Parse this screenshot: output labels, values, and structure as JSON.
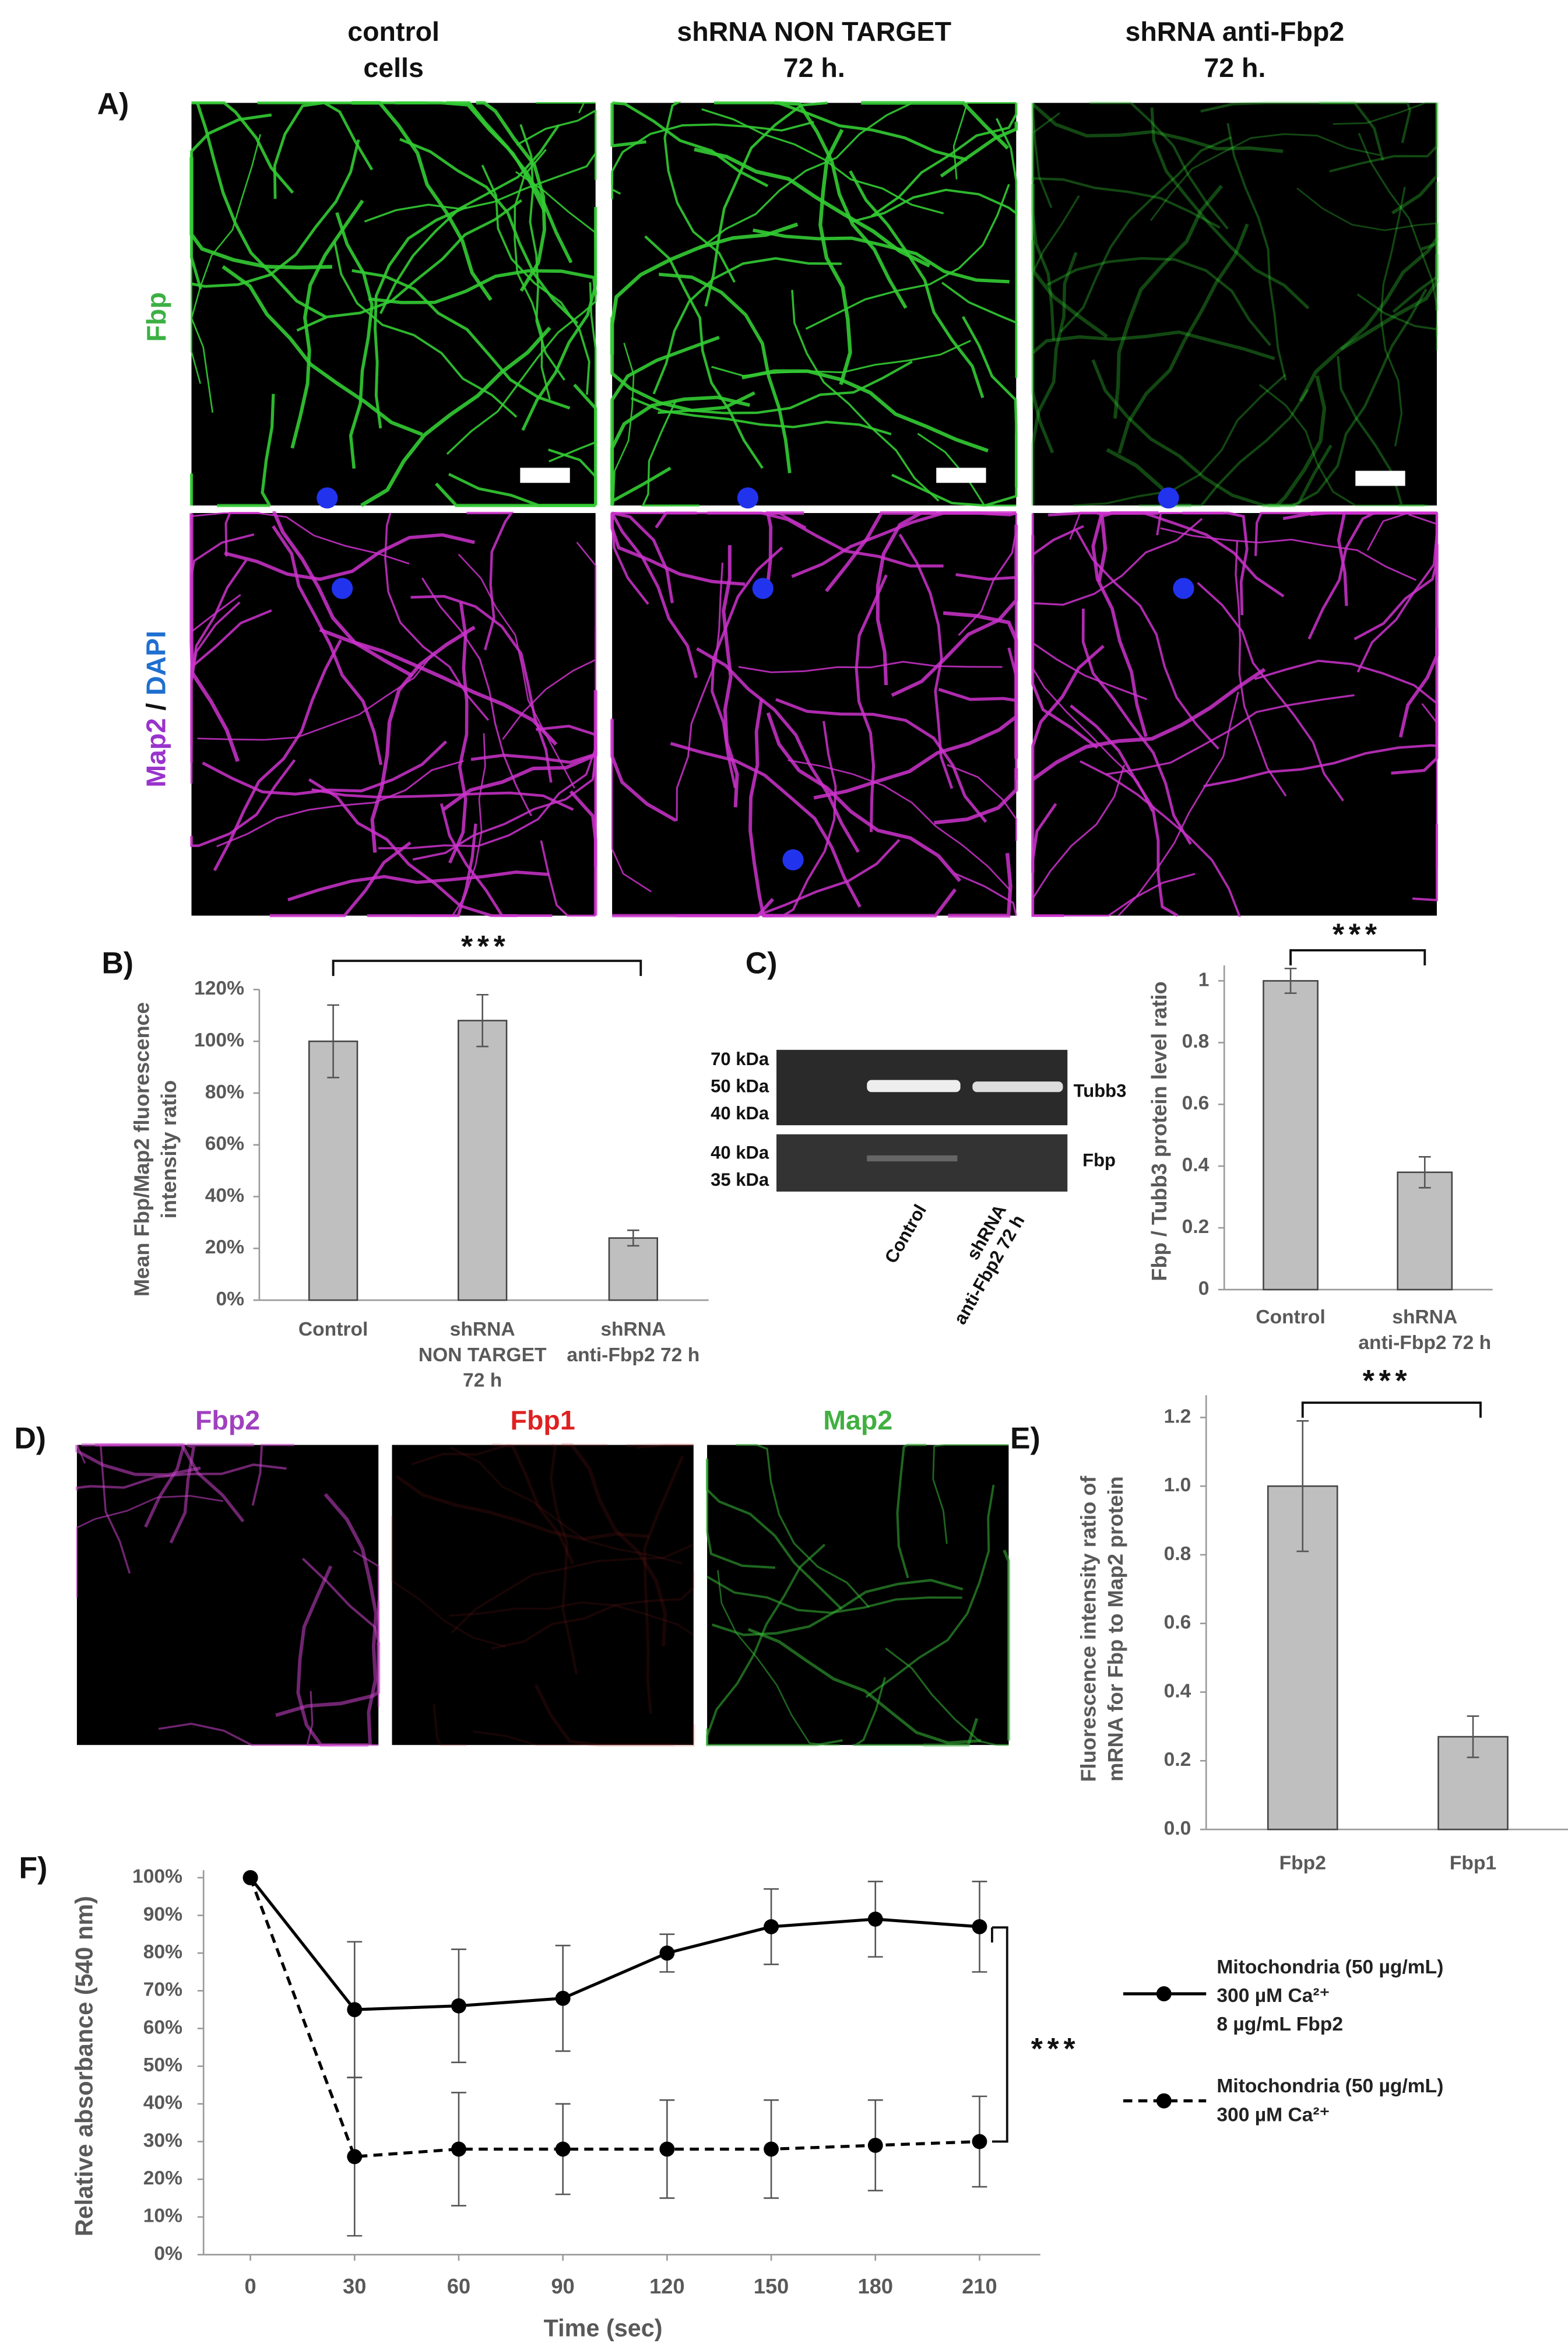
{
  "panel_labels": [
    "A)",
    "B)",
    "C)",
    "D)",
    "E)",
    "F)"
  ],
  "microscopy": {
    "column_headers": [
      [
        "control",
        "cells"
      ],
      [
        "shRNA NON TARGET",
        "72 h."
      ],
      [
        "shRNA anti-Fbp2",
        "72 h."
      ]
    ],
    "row_labels": {
      "top": "Fbp",
      "bottom": [
        "Map2",
        "/",
        "DAPI"
      ]
    },
    "d_labels": [
      "Fbp2",
      "Fbp1",
      "Map2"
    ]
  },
  "western_blot": {
    "ladder": [
      "70 kDa",
      "50 kDa",
      "40 kDa",
      "40 kDa",
      "35 kDa"
    ],
    "bands": [
      "Tubb3",
      "Fbp"
    ],
    "lanes": [
      [
        "Control"
      ],
      [
        "shRNA",
        "anti-Fbp2 72 h"
      ]
    ]
  },
  "chart_data": [
    {
      "type": "bar",
      "y_label": [
        "Mean Fbp/Map2 fluorescence",
        "intensity ratio"
      ],
      "categories": [
        [
          "Control"
        ],
        [
          "shRNA",
          "NON TARGET",
          "72 h"
        ],
        [
          "shRNA",
          "anti-Fbp2 72 h"
        ]
      ],
      "values": [
        100,
        108,
        24
      ],
      "errors": [
        14,
        10,
        3
      ],
      "color": "#bfbfbf",
      "annotation": "***",
      "ylim": [
        0,
        120
      ],
      "yticks": [
        {
          "value": 0,
          "label": "0%"
        },
        {
          "value": 20,
          "label": "20%"
        },
        {
          "value": 40,
          "label": "40%"
        },
        {
          "value": 60,
          "label": "60%"
        },
        {
          "value": 80,
          "label": "80%"
        },
        {
          "value": 100,
          "label": "100%"
        },
        {
          "value": 120,
          "label": "120%"
        }
      ]
    },
    {
      "type": "bar",
      "y_label": [
        "Fbp / Tubb3 protein level ratio"
      ],
      "categories": [
        [
          "Control"
        ],
        [
          "shRNA",
          "anti-Fbp2 72 h"
        ]
      ],
      "values": [
        1.0,
        0.38
      ],
      "errors": [
        0.04,
        0.05
      ],
      "color": "#bfbfbf",
      "annotation": "***",
      "ylim": [
        0,
        1.05
      ],
      "yticks": [
        0,
        0.2,
        0.4,
        0.6,
        0.8,
        1
      ]
    },
    {
      "type": "bar",
      "y_label": [
        "Fluorescence intensity ratio of",
        "mRNA for Fbp to Map2 protein"
      ],
      "categories": [
        [
          "Fbp2"
        ],
        [
          "Fbp1"
        ]
      ],
      "values": [
        1.0,
        0.27
      ],
      "errors": [
        0.19,
        0.06
      ],
      "color": "#bfbfbf",
      "annotation": "***",
      "ylim": [
        0,
        1.265
      ],
      "yticks": [
        {
          "value": 0,
          "label": "0.0"
        },
        {
          "value": 0.2,
          "label": "0.2"
        },
        {
          "value": 0.4,
          "label": "0.4"
        },
        {
          "value": 0.6,
          "label": "0.6"
        },
        {
          "value": 0.8,
          "label": "0.8"
        },
        {
          "value": 1,
          "label": "1.0"
        },
        {
          "value": 1.2,
          "label": "1.2"
        }
      ]
    },
    {
      "type": "line",
      "y_label": "Relative absorbance (540 nm)",
      "x_label": "Time (sec)",
      "annotation": "***",
      "x": [
        0,
        30,
        60,
        90,
        120,
        150,
        180,
        210
      ],
      "xlim": [
        -13.5,
        227.5
      ],
      "xticks": [
        0,
        30,
        60,
        90,
        120,
        150,
        180,
        210
      ],
      "ylim": [
        0,
        100
      ],
      "yticks": [
        {
          "value": 0,
          "label": "0%"
        },
        {
          "value": 10,
          "label": "10%"
        },
        {
          "value": 20,
          "label": "20%"
        },
        {
          "value": 30,
          "label": "30%"
        },
        {
          "value": 40,
          "label": "40%"
        },
        {
          "value": 50,
          "label": "50%"
        },
        {
          "value": 60,
          "label": "60%"
        },
        {
          "value": 70,
          "label": "70%"
        },
        {
          "value": 80,
          "label": "80%"
        },
        {
          "value": 90,
          "label": "90%"
        },
        {
          "value": 100,
          "label": "100%"
        }
      ],
      "series": [
        {
          "name": [
            "Mitochondria (50 µg/mL)",
            "300 µM Ca²⁺",
            "8 µg/mL Fbp2"
          ],
          "color": "#000000",
          "dashed": false,
          "values": [
            100,
            65,
            66,
            68,
            80,
            87,
            89,
            87
          ],
          "errors": [
            0,
            18,
            15,
            14,
            5,
            10,
            10,
            12
          ]
        },
        {
          "name": [
            "Mitochondria (50 µg/mL)",
            "300 µM Ca²⁺"
          ],
          "color": "#000000",
          "dashed": true,
          "values": [
            100,
            26,
            28,
            28,
            28,
            28,
            29,
            30
          ],
          "errors": [
            0,
            21,
            15,
            12,
            13,
            13,
            12,
            12
          ]
        }
      ]
    }
  ]
}
